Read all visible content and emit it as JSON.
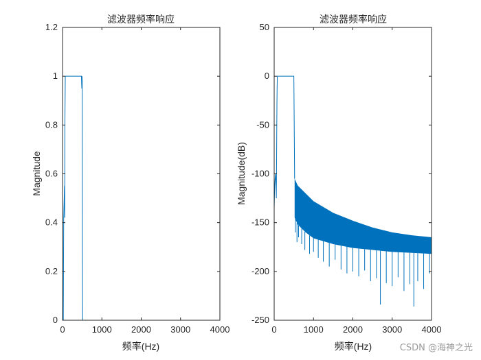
{
  "chart_data": [
    {
      "type": "line",
      "title": "滤波器频率响应",
      "xlabel": "频率(Hz)",
      "ylabel": "Magnitude",
      "xlim": [
        0,
        4000
      ],
      "ylim": [
        0,
        1.2
      ],
      "xticks": [
        0,
        1000,
        2000,
        3000,
        4000
      ],
      "yticks": [
        0,
        0.2,
        0.4,
        0.6,
        0.8,
        1,
        1.2
      ],
      "series": [
        {
          "name": "magnitude",
          "color": "#0072BD",
          "x": [
            0,
            20,
            30,
            50,
            55,
            60,
            70,
            80,
            90,
            100,
            480,
            490,
            495,
            500,
            505,
            510,
            520,
            4000
          ],
          "y": [
            0,
            0,
            0.42,
            0.55,
            0.42,
            0.8,
            1,
            1,
            1,
            1,
            1,
            0.95,
            1,
            0.98,
            0.3,
            0,
            0,
            0
          ]
        }
      ]
    },
    {
      "type": "line",
      "title": "滤波器频率响应",
      "xlabel": "频率(Hz)",
      "ylabel": "Magnitude(dB)",
      "xlim": [
        0,
        4000
      ],
      "ylim": [
        -250,
        50
      ],
      "xticks": [
        0,
        1000,
        2000,
        3000,
        4000
      ],
      "yticks": [
        -250,
        -200,
        -150,
        -100,
        -50,
        0,
        50
      ],
      "passband": {
        "start": 80,
        "end": 500,
        "level": 0
      },
      "lowband_x": [
        0,
        10,
        20,
        30,
        40,
        50,
        55,
        60,
        65,
        70,
        75,
        80
      ],
      "lowband_y": [
        -135,
        -118,
        -108,
        -100,
        -105,
        -112,
        -125,
        -95,
        -60,
        -30,
        -12,
        0
      ],
      "envelope_x": [
        520,
        600,
        800,
        1000,
        1500,
        2000,
        2500,
        3000,
        3500,
        4000
      ],
      "envelope_top": [
        -105,
        -112,
        -120,
        -128,
        -140,
        -148,
        -155,
        -160,
        -163,
        -165
      ],
      "envelope_bottom": [
        -145,
        -152,
        -160,
        -166,
        -172,
        -176,
        -178,
        -180,
        -181,
        -182
      ],
      "spike_x": [
        540,
        580,
        620,
        700,
        780,
        900,
        1000,
        1120,
        1250,
        1400,
        1550,
        1700,
        1850,
        2000,
        2150,
        2300,
        2450,
        2600,
        2700,
        2850,
        3000,
        3150,
        3300,
        3450,
        3550,
        3650,
        3800,
        3950
      ],
      "spike_y": [
        -160,
        -170,
        -165,
        -172,
        -178,
        -182,
        -180,
        -186,
        -190,
        -195,
        -188,
        -198,
        -202,
        -200,
        -205,
        -199,
        -210,
        -207,
        -234,
        -212,
        -215,
        -206,
        -220,
        -213,
        -236,
        -210,
        -218,
        -202
      ],
      "series": [
        {
          "name": "magnitude_db",
          "color": "#0072BD"
        }
      ]
    }
  ],
  "watermark": "CSDN @海神之光"
}
